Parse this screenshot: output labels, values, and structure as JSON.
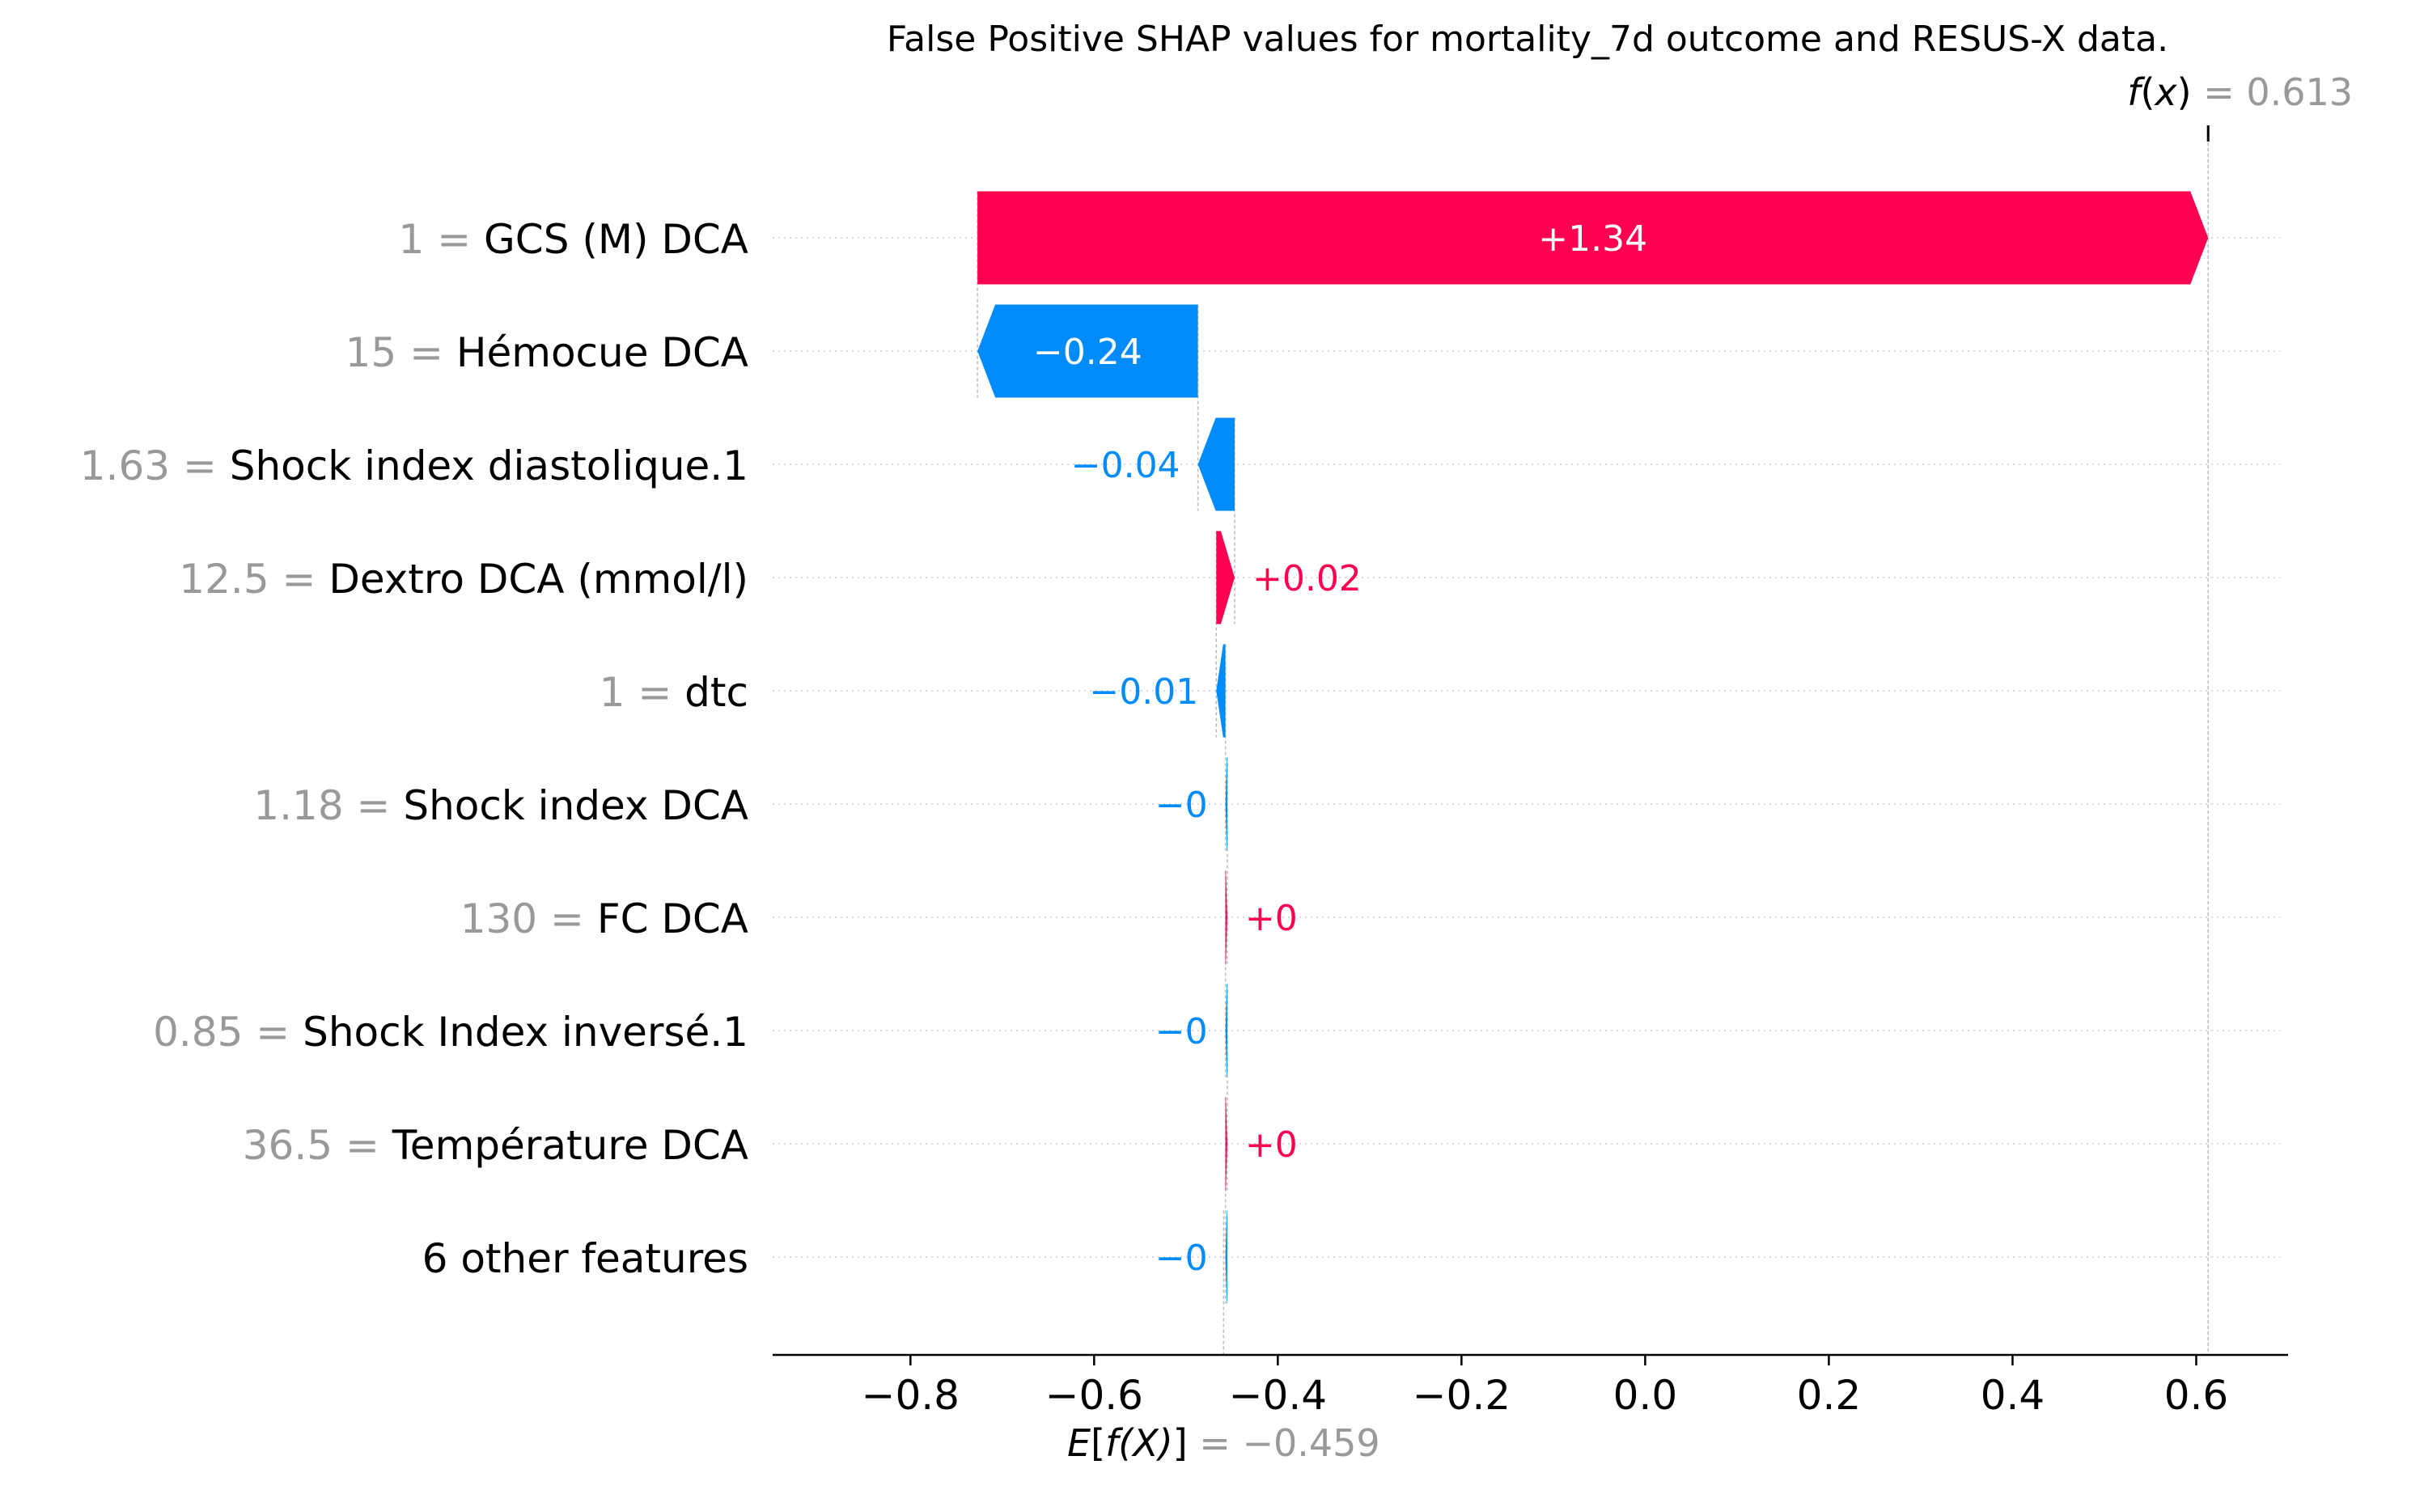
{
  "chart_data": {
    "type": "waterfall",
    "title": "False Positive SHAP values for mortality_7d outcome and RESUS-X data.",
    "base_value": -0.459,
    "output_value": 0.613,
    "base_label": "E[f(X)]",
    "base_label_parts": {
      "func": "E",
      "open": "[",
      "inner": "f(X)",
      "close": "]",
      "eq": " = ",
      "value": "−0.459"
    },
    "output_label_parts": {
      "func": "f",
      "open": "(",
      "inner": "x",
      "close": ")",
      "eq": " = ",
      "value": "0.613"
    },
    "features": [
      {
        "value": "1",
        "name": "GCS (M) DCA",
        "shap": 1.34,
        "label": "+1.34"
      },
      {
        "value": "15",
        "name": "Hémocue DCA",
        "shap": -0.24,
        "label": "−0.24"
      },
      {
        "value": "1.63",
        "name": "Shock index diastolique.1",
        "shap": -0.04,
        "label": "−0.04"
      },
      {
        "value": "12.5",
        "name": "Dextro DCA (mmol/l)",
        "shap": 0.02,
        "label": "+0.02"
      },
      {
        "value": "1",
        "name": "dtc",
        "shap": -0.01,
        "label": "−0.01"
      },
      {
        "value": "1.18",
        "name": "Shock index DCA",
        "shap": -0.002,
        "label": "−0"
      },
      {
        "value": "130",
        "name": "FC  DCA",
        "shap": 0.002,
        "label": "+0"
      },
      {
        "value": "0.85",
        "name": "Shock Index inversé.1",
        "shap": -0.002,
        "label": "−0"
      },
      {
        "value": "36.5",
        "name": "Température DCA",
        "shap": 0.002,
        "label": "+0"
      },
      {
        "value": "",
        "name": "6 other features",
        "shap": -0.002,
        "label": "−0"
      }
    ],
    "xlim": [
      -0.95,
      0.7
    ],
    "xticks": [
      -0.8,
      -0.6,
      -0.4,
      -0.2,
      0.0,
      0.2,
      0.4,
      0.6
    ],
    "xtick_labels": [
      "−0.8",
      "−0.6",
      "−0.4",
      "−0.2",
      "0.0",
      "0.2",
      "0.4",
      "0.6"
    ],
    "colors": {
      "positive": "#ff0051",
      "negative": "#008bfb",
      "value_text": "#999999",
      "label_text": "#000000",
      "grid": "#cccccc",
      "guide": "#bbbbbb"
    }
  }
}
